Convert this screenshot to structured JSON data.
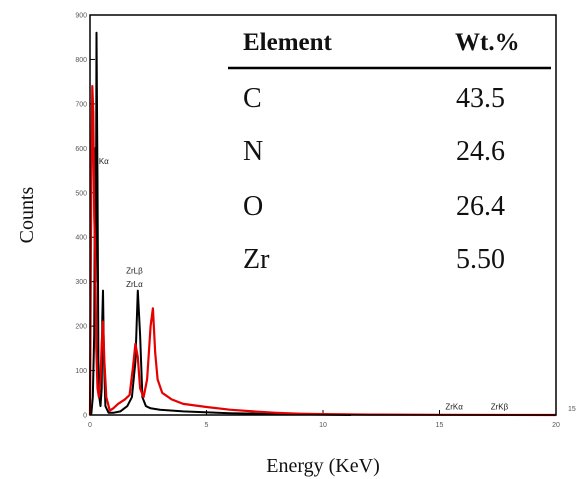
{
  "chart_data": {
    "type": "line",
    "xlabel": "Energy (KeV)",
    "ylabel": "Counts",
    "xlim": [
      0,
      20
    ],
    "ylim": [
      0,
      900
    ],
    "x_ticks": [
      0,
      5,
      10,
      15,
      20
    ],
    "y_ticks": [
      0,
      100,
      200,
      300,
      400,
      500,
      600,
      700,
      800,
      900
    ],
    "x_extra_label": "15",
    "series": [
      {
        "color": "#000000",
        "points": [
          [
            0.05,
            0
          ],
          [
            0.12,
            40
          ],
          [
            0.18,
            180
          ],
          [
            0.22,
            600
          ],
          [
            0.25,
            300
          ],
          [
            0.28,
            860
          ],
          [
            0.32,
            520
          ],
          [
            0.36,
            120
          ],
          [
            0.4,
            40
          ],
          [
            0.45,
            20
          ],
          [
            0.5,
            60
          ],
          [
            0.53,
            220
          ],
          [
            0.56,
            280
          ],
          [
            0.6,
            120
          ],
          [
            0.66,
            20
          ],
          [
            0.8,
            5
          ],
          [
            1.0,
            5
          ],
          [
            1.3,
            8
          ],
          [
            1.6,
            20
          ],
          [
            1.8,
            40
          ],
          [
            1.95,
            120
          ],
          [
            2.05,
            280
          ],
          [
            2.15,
            180
          ],
          [
            2.25,
            40
          ],
          [
            2.4,
            20
          ],
          [
            2.6,
            15
          ],
          [
            3.0,
            12
          ],
          [
            4.0,
            8
          ],
          [
            6.0,
            4
          ],
          [
            8.0,
            2
          ],
          [
            10.0,
            1
          ],
          [
            11.2,
            0
          ]
        ]
      },
      {
        "color": "#e60000",
        "points": [
          [
            0.0,
            0
          ],
          [
            0.05,
            500
          ],
          [
            0.1,
            740
          ],
          [
            0.14,
            680
          ],
          [
            0.18,
            450
          ],
          [
            0.22,
            380
          ],
          [
            0.27,
            150
          ],
          [
            0.32,
            60
          ],
          [
            0.38,
            40
          ],
          [
            0.45,
            80
          ],
          [
            0.5,
            160
          ],
          [
            0.56,
            210
          ],
          [
            0.62,
            120
          ],
          [
            0.7,
            40
          ],
          [
            0.85,
            10
          ],
          [
            1.0,
            15
          ],
          [
            1.2,
            25
          ],
          [
            1.5,
            35
          ],
          [
            1.7,
            45
          ],
          [
            1.85,
            110
          ],
          [
            1.95,
            160
          ],
          [
            2.05,
            130
          ],
          [
            2.15,
            60
          ],
          [
            2.3,
            40
          ],
          [
            2.45,
            80
          ],
          [
            2.6,
            200
          ],
          [
            2.7,
            240
          ],
          [
            2.8,
            140
          ],
          [
            2.9,
            80
          ],
          [
            3.1,
            50
          ],
          [
            3.5,
            35
          ],
          [
            4.0,
            25
          ],
          [
            5.0,
            18
          ],
          [
            6.0,
            12
          ],
          [
            7.0,
            8
          ],
          [
            8.0,
            5
          ],
          [
            9.0,
            3
          ],
          [
            10.0,
            2
          ],
          [
            12.0,
            1
          ],
          [
            15.0,
            0.5
          ],
          [
            20.0,
            0
          ]
        ]
      }
    ],
    "peak_labels": [
      {
        "text": "Kα",
        "x": 0.38,
        "y": 565,
        "anchor": "start"
      },
      {
        "text": "ZrLβ",
        "x": 1.55,
        "y": 318,
        "anchor": "start"
      },
      {
        "text": "ZrLα",
        "x": 1.55,
        "y": 288,
        "anchor": "start"
      },
      {
        "text": "ZrKα",
        "x": 15.25,
        "y": 12,
        "anchor": "start"
      },
      {
        "text": "ZrKβ",
        "x": 17.2,
        "y": 12,
        "anchor": "start"
      }
    ]
  },
  "table": {
    "headers": [
      "Element",
      "Wt.%"
    ],
    "rows": [
      [
        "C",
        "43.5"
      ],
      [
        "N",
        "24.6"
      ],
      [
        "O",
        "26.4"
      ],
      [
        "Zr",
        "5.50"
      ]
    ]
  }
}
